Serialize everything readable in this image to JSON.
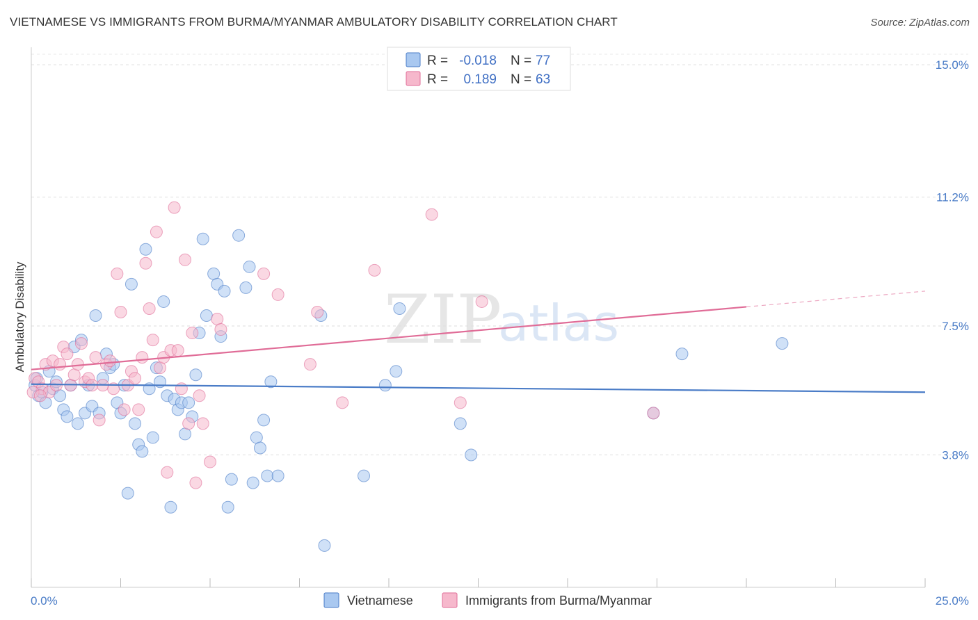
{
  "title": "VIETNAMESE VS IMMIGRANTS FROM BURMA/MYANMAR AMBULATORY DISABILITY CORRELATION CHART",
  "source": "Source: ZipAtlas.com",
  "watermark": {
    "zip": "ZIP",
    "atlas": "atlas"
  },
  "legend": {
    "rows": [
      {
        "r_label": "R =",
        "r_value": "-0.018",
        "n_label": "N =",
        "n_value": "77",
        "color": "#a9c8f0"
      },
      {
        "r_label": "R =",
        "r_value": "0.189",
        "n_label": "N =",
        "n_value": "63",
        "color": "#f6b8cc"
      }
    ]
  },
  "bottom_legend": [
    {
      "label": "Vietnamese",
      "color": "#a9c8f0"
    },
    {
      "label": "Immigrants from Burma/Myanmar",
      "color": "#f6b8cc"
    }
  ],
  "chart_data": {
    "type": "scatter",
    "title": "VIETNAMESE VS IMMIGRANTS FROM BURMA/MYANMAR AMBULATORY DISABILITY CORRELATION CHART",
    "xlabel": "",
    "ylabel": "Ambulatory Disability",
    "xlim": [
      0,
      25
    ],
    "ylim": [
      0,
      15.5
    ],
    "x_tick_labels": [
      "0.0%",
      "25.0%"
    ],
    "y_ticks": [
      3.8,
      7.5,
      11.2,
      15.0
    ],
    "y_tick_labels": [
      "3.8%",
      "7.5%",
      "11.2%",
      "15.0%"
    ],
    "grid": true,
    "legend_position": "top-center",
    "series": [
      {
        "name": "Vietnamese",
        "color": "#4a7cc7",
        "fill": "#a9c8f0",
        "trend": {
          "x": [
            0,
            25
          ],
          "y": [
            5.83,
            5.6
          ]
        },
        "points": [
          [
            0.1,
            5.8
          ],
          [
            0.2,
            5.5
          ],
          [
            0.3,
            5.6
          ],
          [
            0.4,
            5.3
          ],
          [
            0.5,
            6.2
          ],
          [
            0.6,
            5.7
          ],
          [
            0.7,
            5.9
          ],
          [
            0.8,
            5.5
          ],
          [
            0.9,
            5.1
          ],
          [
            1.0,
            4.9
          ],
          [
            1.1,
            5.8
          ],
          [
            1.2,
            6.9
          ],
          [
            1.3,
            4.7
          ],
          [
            1.4,
            7.1
          ],
          [
            1.5,
            5.0
          ],
          [
            1.6,
            5.8
          ],
          [
            1.7,
            5.2
          ],
          [
            1.8,
            7.8
          ],
          [
            1.9,
            5.0
          ],
          [
            2.0,
            6.0
          ],
          [
            2.1,
            6.7
          ],
          [
            2.2,
            6.3
          ],
          [
            2.3,
            6.4
          ],
          [
            2.4,
            5.3
          ],
          [
            2.5,
            5.0
          ],
          [
            2.6,
            5.8
          ],
          [
            2.7,
            2.7
          ],
          [
            2.8,
            8.7
          ],
          [
            2.9,
            4.7
          ],
          [
            3.0,
            4.1
          ],
          [
            3.1,
            3.9
          ],
          [
            3.2,
            9.7
          ],
          [
            3.3,
            5.7
          ],
          [
            3.4,
            4.3
          ],
          [
            3.5,
            6.3
          ],
          [
            3.6,
            5.9
          ],
          [
            3.7,
            8.2
          ],
          [
            3.8,
            5.5
          ],
          [
            3.9,
            2.3
          ],
          [
            4.0,
            5.4
          ],
          [
            4.1,
            5.1
          ],
          [
            4.2,
            5.3
          ],
          [
            4.3,
            4.4
          ],
          [
            4.4,
            5.3
          ],
          [
            4.5,
            4.9
          ],
          [
            4.6,
            6.1
          ],
          [
            4.7,
            7.3
          ],
          [
            4.8,
            10.0
          ],
          [
            4.9,
            7.8
          ],
          [
            5.1,
            9.0
          ],
          [
            5.2,
            8.7
          ],
          [
            5.3,
            7.2
          ],
          [
            5.4,
            8.5
          ],
          [
            5.5,
            2.3
          ],
          [
            5.6,
            3.1
          ],
          [
            5.8,
            10.1
          ],
          [
            6.0,
            8.6
          ],
          [
            6.1,
            9.2
          ],
          [
            6.2,
            3.0
          ],
          [
            6.3,
            4.3
          ],
          [
            6.4,
            4.0
          ],
          [
            6.5,
            4.8
          ],
          [
            6.6,
            3.2
          ],
          [
            6.7,
            5.9
          ],
          [
            6.9,
            3.2
          ],
          [
            8.1,
            7.8
          ],
          [
            8.2,
            1.2
          ],
          [
            9.3,
            3.2
          ],
          [
            9.9,
            5.8
          ],
          [
            10.2,
            6.2
          ],
          [
            10.3,
            8.0
          ],
          [
            12.0,
            4.7
          ],
          [
            12.3,
            3.8
          ],
          [
            17.4,
            5.0
          ],
          [
            18.2,
            6.7
          ],
          [
            21.0,
            7.0
          ],
          [
            0.15,
            6.0
          ]
        ]
      },
      {
        "name": "Immigrants from Burma/Myanmar",
        "color": "#e06c97",
        "fill": "#f6b8cc",
        "trend": {
          "x": [
            0,
            20
          ],
          "y": [
            6.25,
            8.05
          ]
        },
        "trend_dashed_extension": {
          "x": [
            20,
            25
          ],
          "y": [
            8.05,
            8.5
          ]
        },
        "points": [
          [
            0.1,
            6.0
          ],
          [
            0.2,
            5.9
          ],
          [
            0.3,
            5.7
          ],
          [
            0.4,
            6.4
          ],
          [
            0.5,
            5.6
          ],
          [
            0.6,
            6.5
          ],
          [
            0.7,
            5.8
          ],
          [
            0.8,
            6.4
          ],
          [
            0.9,
            6.9
          ],
          [
            1.0,
            6.7
          ],
          [
            1.1,
            5.8
          ],
          [
            1.2,
            6.1
          ],
          [
            1.3,
            6.4
          ],
          [
            1.4,
            7.0
          ],
          [
            1.5,
            5.9
          ],
          [
            1.6,
            6.0
          ],
          [
            1.7,
            5.8
          ],
          [
            1.8,
            6.6
          ],
          [
            1.9,
            4.8
          ],
          [
            2.0,
            5.8
          ],
          [
            2.1,
            6.4
          ],
          [
            2.2,
            6.5
          ],
          [
            2.3,
            5.7
          ],
          [
            2.4,
            9.0
          ],
          [
            2.5,
            7.9
          ],
          [
            2.6,
            5.1
          ],
          [
            2.7,
            5.8
          ],
          [
            2.8,
            6.2
          ],
          [
            2.9,
            6.0
          ],
          [
            3.0,
            5.1
          ],
          [
            3.1,
            6.6
          ],
          [
            3.2,
            9.3
          ],
          [
            3.3,
            8.0
          ],
          [
            3.4,
            7.1
          ],
          [
            3.5,
            10.2
          ],
          [
            3.6,
            6.3
          ],
          [
            3.7,
            6.6
          ],
          [
            3.8,
            3.3
          ],
          [
            3.9,
            6.8
          ],
          [
            4.0,
            10.9
          ],
          [
            4.1,
            6.8
          ],
          [
            4.2,
            5.7
          ],
          [
            4.3,
            9.4
          ],
          [
            4.4,
            4.7
          ],
          [
            4.5,
            7.3
          ],
          [
            4.6,
            3.0
          ],
          [
            4.7,
            5.5
          ],
          [
            4.8,
            4.7
          ],
          [
            5.0,
            3.6
          ],
          [
            5.2,
            7.7
          ],
          [
            5.3,
            7.4
          ],
          [
            6.5,
            9.0
          ],
          [
            6.9,
            8.4
          ],
          [
            7.8,
            6.4
          ],
          [
            8.0,
            7.9
          ],
          [
            8.7,
            5.3
          ],
          [
            9.6,
            9.1
          ],
          [
            11.2,
            10.7
          ],
          [
            12.0,
            5.3
          ],
          [
            12.6,
            8.2
          ],
          [
            17.4,
            5.0
          ],
          [
            0.05,
            5.6
          ],
          [
            0.25,
            5.5
          ]
        ]
      }
    ]
  }
}
